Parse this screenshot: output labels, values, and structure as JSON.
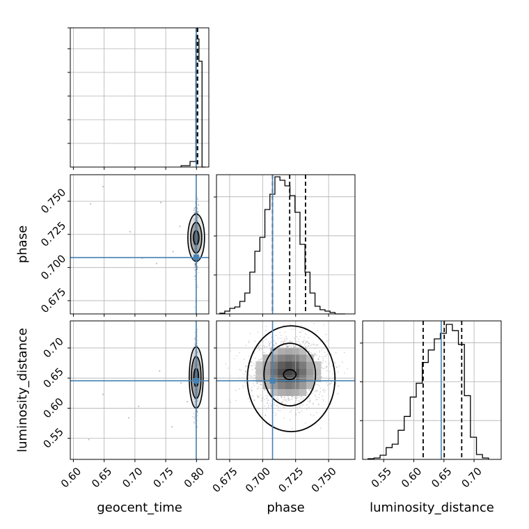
{
  "chart_data": {
    "type": "corner",
    "grid": true,
    "parameters": [
      "geocent_time",
      "phase",
      "luminosity_distance"
    ],
    "axis_labels": {
      "geocent_time": "geocent_time",
      "phase": "phase",
      "luminosity_distance": "luminosity_distance"
    },
    "ranges": {
      "geocent_time": [
        0.595,
        0.82
      ],
      "phase": [
        0.665,
        0.77
      ],
      "luminosity_distance": [
        0.515,
        0.745
      ]
    },
    "ticks": {
      "geocent_time": [
        "0.60",
        "0.65",
        "0.70",
        "0.75",
        "0.80"
      ],
      "phase": [
        "0.675",
        "0.700",
        "0.725",
        "0.750"
      ],
      "luminosity_distance": [
        "0.55",
        "0.60",
        "0.65",
        "0.70"
      ]
    },
    "truths": {
      "geocent_time": 0.7995,
      "phase": 0.7075,
      "luminosity_distance": 0.6455
    },
    "truth_color": "#4682b4",
    "quantiles": {
      "geocent_time": [
        0.7995,
        0.8008,
        0.8018
      ],
      "phase": [
        0.7075,
        0.7205,
        0.7325
      ],
      "luminosity_distance": [
        0.6155,
        0.6505,
        0.6795
      ]
    },
    "histograms": {
      "geocent_time": {
        "bin_edges": [
          0.775,
          0.7895,
          0.799,
          0.804,
          0.809,
          0.814
        ],
        "counts": [
          0.01,
          0.04,
          0.92,
          0.76,
          0.0
        ]
      },
      "phase": {
        "bin_edges": [
          0.6675,
          0.6713,
          0.6751,
          0.6789,
          0.6827,
          0.6865,
          0.6903,
          0.6941,
          0.6979,
          0.7017,
          0.7055,
          0.7093,
          0.7131,
          0.7169,
          0.7207,
          0.7245,
          0.7283,
          0.7321,
          0.7359,
          0.7397,
          0.7435,
          0.7473,
          0.7511,
          0.7549,
          0.7587,
          0.7625
        ],
        "counts": [
          0.005,
          0.02,
          0.04,
          0.05,
          0.09,
          0.15,
          0.3,
          0.45,
          0.55,
          0.75,
          0.86,
          0.985,
          0.96,
          0.92,
          0.85,
          0.73,
          0.5,
          0.3,
          0.15,
          0.055,
          0.03,
          0.02,
          0.01,
          0.0,
          0.0
        ]
      },
      "luminosity_distance": {
        "bin_edges": [
          0.524,
          0.534,
          0.544,
          0.554,
          0.564,
          0.574,
          0.584,
          0.594,
          0.604,
          0.614,
          0.624,
          0.634,
          0.644,
          0.654,
          0.664,
          0.674,
          0.684,
          0.694,
          0.704,
          0.714,
          0.724
        ],
        "counts": [
          0.005,
          0.01,
          0.03,
          0.085,
          0.11,
          0.21,
          0.31,
          0.45,
          0.55,
          0.7,
          0.79,
          0.87,
          0.91,
          0.975,
          0.93,
          0.83,
          0.46,
          0.16,
          0.035,
          0.01
        ]
      }
    },
    "scatter_2d": {
      "geocent_time_vs_phase": {
        "core_center": [
          0.7995,
          0.7225
        ],
        "outliers": [
          [
            0.628,
            0.748
          ],
          [
            0.648,
            0.761
          ],
          [
            0.692,
            0.727
          ],
          [
            0.742,
            0.749
          ],
          [
            0.712,
            0.707
          ],
          [
            0.762,
            0.712
          ],
          [
            0.773,
            0.731
          ],
          [
            0.735,
            0.703
          ]
        ]
      },
      "geocent_time_vs_luminosity_distance": {
        "core_center": [
          0.7995,
          0.651
        ],
        "outliers": [
          [
            0.625,
            0.548
          ],
          [
            0.648,
            0.623
          ],
          [
            0.69,
            0.584
          ],
          [
            0.706,
            0.603
          ],
          [
            0.74,
            0.662
          ],
          [
            0.76,
            0.569
          ],
          [
            0.775,
            0.642
          ],
          [
            0.785,
            0.611
          ]
        ]
      },
      "phase_vs_luminosity_distance": {
        "peak": [
          0.7195,
          0.6605
        ]
      }
    }
  }
}
